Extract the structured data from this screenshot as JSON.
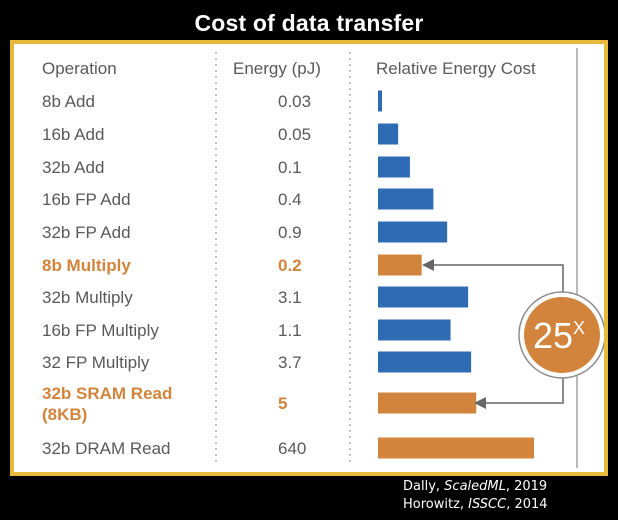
{
  "title": "Cost of data transfer",
  "citations": [
    {
      "author": "Dally, ",
      "venue": "ScaledML",
      "year": ", 2019"
    },
    {
      "author": "Horowitz, ",
      "venue": "ISSCC",
      "year": ", 2014"
    }
  ],
  "chart_data": {
    "type": "bar",
    "orientation": "horizontal",
    "headers": {
      "operation": "Operation",
      "energy": "Energy (pJ)",
      "relative": "Relative Energy Cost"
    },
    "rows": [
      {
        "operation": "8b Add",
        "energy": "0.03",
        "value": 0.03,
        "highlight": false
      },
      {
        "operation": "16b Add",
        "energy": "0.05",
        "value": 0.05,
        "highlight": false
      },
      {
        "operation": "32b Add",
        "energy": "0.1",
        "value": 0.1,
        "highlight": false
      },
      {
        "operation": "16b FP Add",
        "energy": "0.4",
        "value": 0.4,
        "highlight": false
      },
      {
        "operation": "32b FP Add",
        "energy": "0.9",
        "value": 0.9,
        "highlight": false
      },
      {
        "operation": "8b Multiply",
        "energy": "0.2",
        "value": 0.2,
        "highlight": true
      },
      {
        "operation": "32b Multiply",
        "energy": "3.1",
        "value": 3.1,
        "highlight": false
      },
      {
        "operation": "16b FP Multiply",
        "energy": "1.1",
        "value": 1.1,
        "highlight": false
      },
      {
        "operation": "32 FP Multiply",
        "energy": "3.7",
        "value": 3.7,
        "highlight": false
      },
      {
        "operation": "32b SRAM Read (8KB)",
        "energy": "5",
        "value": 5,
        "highlight": true
      },
      {
        "operation": "32b DRAM Read",
        "energy": "640",
        "value": 640,
        "highlight": true
      }
    ],
    "scale": "log",
    "axis_range": [
      0.01,
      1000
    ],
    "annotation": {
      "text": "25",
      "superscript": "X",
      "from_row": 5,
      "to_row": 9
    },
    "colors": {
      "bar": "#2f6ab5",
      "highlight": "#d2843c",
      "text": "#595959",
      "frame": "#e8b93a",
      "badge": "#d2843c",
      "arrow": "#666666"
    }
  }
}
